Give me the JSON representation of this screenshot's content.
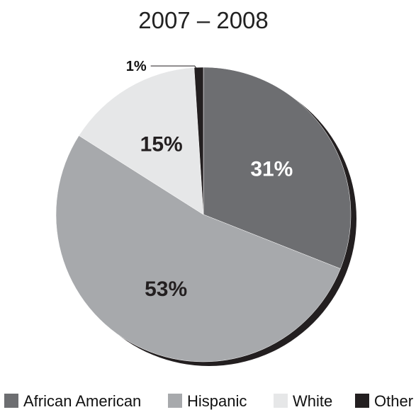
{
  "chart_data": {
    "type": "pie",
    "title": "2007 – 2008",
    "categories": [
      "African American",
      "Hispanic",
      "White",
      "Other"
    ],
    "values": [
      31,
      53,
      15,
      1
    ],
    "labels": [
      "31%",
      "53%",
      "15%",
      "1%"
    ],
    "colors": [
      "#6d6e71",
      "#a7a9ac",
      "#e6e7e8",
      "#231f20"
    ],
    "label_colors": [
      "#ffffff",
      "#231f20",
      "#231f20",
      "#231f20"
    ],
    "legend_position": "bottom"
  }
}
